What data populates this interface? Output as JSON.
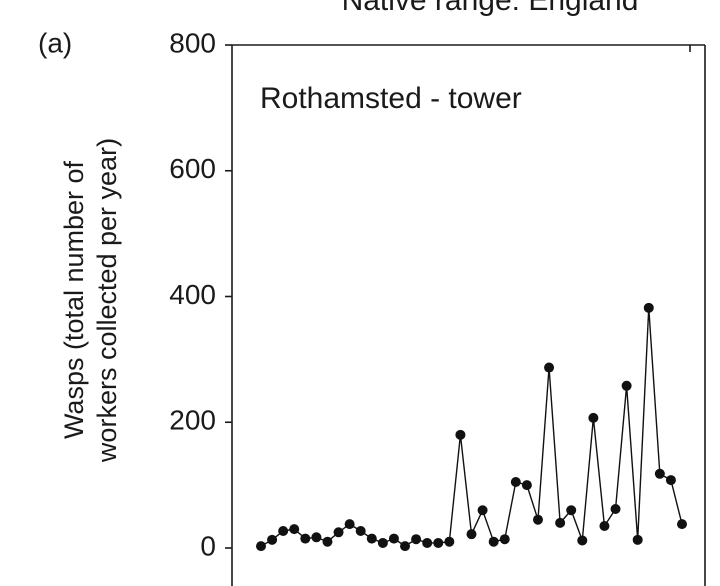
{
  "chart_data": {
    "type": "line",
    "title": "Native range: England",
    "panel_label": "(a)",
    "annotation": "Rothamsted -  tower",
    "ylabel": [
      "Wasps (total number of",
      "workers collected per year)"
    ],
    "values": [
      3,
      13,
      27,
      30,
      15,
      17,
      10,
      25,
      38,
      27,
      15,
      8,
      15,
      3,
      14,
      8,
      8,
      10,
      180,
      22,
      60,
      10,
      14,
      105,
      100,
      45,
      287,
      40,
      60,
      12,
      207,
      35,
      62,
      258,
      13,
      382,
      118,
      108,
      38
    ],
    "color": "#111111",
    "ylim": [
      0,
      800
    ],
    "yticks": [
      0,
      200,
      400,
      600,
      800
    ]
  }
}
